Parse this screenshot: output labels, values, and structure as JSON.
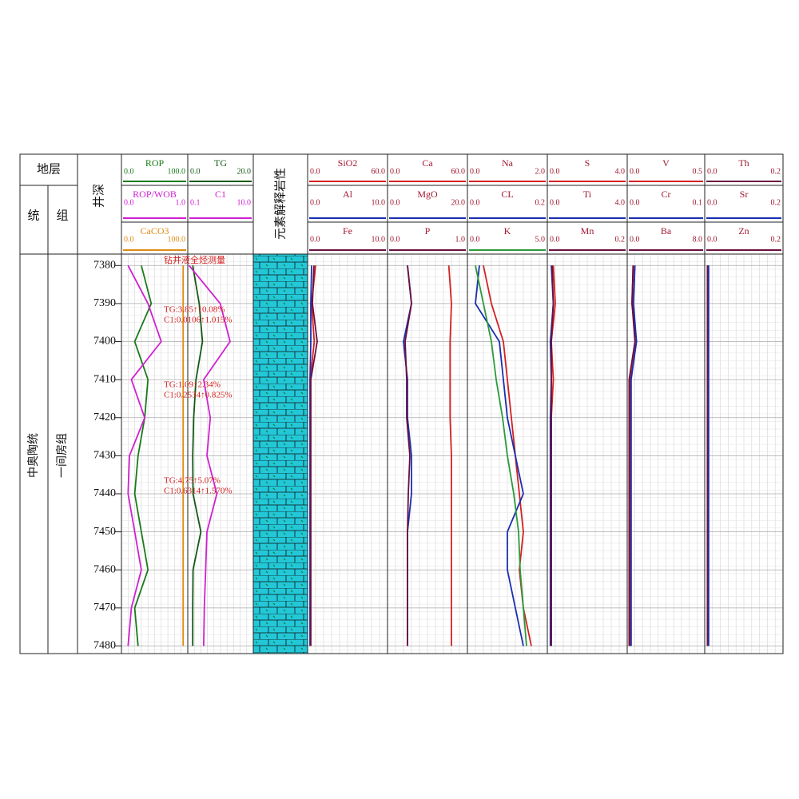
{
  "chart_data": {
    "type": "well-log",
    "headers": {
      "strata": "地层",
      "series_col": "统",
      "formation_col": "组",
      "depth": "井深",
      "lithology": "元素解释岩性"
    },
    "zones": {
      "series": "中奥陶统",
      "formation": "一间房组"
    },
    "ylim": [
      7377,
      7482
    ],
    "yticks": [
      7380,
      7390,
      7400,
      7410,
      7420,
      7430,
      7440,
      7450,
      7460,
      7470,
      7480
    ],
    "depth": [
      7380,
      7390,
      7400,
      7410,
      7420,
      7430,
      7440,
      7450,
      7460,
      7470,
      7480
    ],
    "tracks": [
      {
        "curves": [
          {
            "name": "ROP",
            "color": "#1a7a1a",
            "scale": [
              {
                "value": 0,
                "label": "0.0"
              },
              {
                "value": 100,
                "label": "100.0"
              }
            ],
            "values": [
              30,
              45,
              20,
              40,
              35,
              25,
              20,
              30,
              40,
              20,
              25
            ]
          },
          {
            "name": "ROP/WOB",
            "color": "#d020d0",
            "scale": [
              {
                "value": 0,
                "label": "0.0"
              },
              {
                "value": 1,
                "label": "1.0"
              }
            ],
            "values": [
              0.1,
              0.4,
              0.6,
              0.15,
              0.35,
              0.12,
              0.1,
              0.2,
              0.3,
              0.15,
              0.1
            ]
          },
          {
            "name": "CaCO3",
            "color": "#e08a10",
            "scale": [
              {
                "value": 0,
                "label": "0.0"
              },
              {
                "value": 100,
                "label": "100.0"
              }
            ],
            "values": [
              93,
              93,
              93,
              93,
              93,
              93,
              93,
              93,
              93,
              93,
              93
            ]
          }
        ]
      },
      {
        "curves": [
          {
            "name": "TG",
            "color": "#145a14",
            "scale": [
              {
                "value": 0,
                "label": "0.0"
              },
              {
                "value": 20,
                "label": "20.0"
              }
            ],
            "values": [
              1.5,
              3.5,
              4.5,
              2.5,
              1.8,
              1.5,
              1.6,
              4,
              1.6,
              1.5,
              1.5
            ]
          },
          {
            "name": "C1",
            "color": "#d020d0",
            "scale": [
              0.1,
              {
                "value": 10,
                "label": "10.0"
              }
            ],
            "values": [
              0.3,
              5,
              6.5,
              2.5,
              3.5,
              3,
              4.5,
              3,
              2.8,
              2.6,
              2.5
            ]
          }
        ]
      },
      {
        "curves": [
          {
            "name": "SiO2",
            "color": "#d42020",
            "scale": [
              {
                "value": 0,
                "label": "0.0"
              },
              {
                "value": 60,
                "label": "60.0"
              }
            ],
            "values": [
              6,
              3,
              5,
              2,
              2,
              2,
              2,
              2,
              2,
              2,
              2
            ]
          },
          {
            "name": "Al",
            "color": "#1a2fb0",
            "scale": [
              {
                "value": 0,
                "label": "0.0"
              },
              {
                "value": 10,
                "label": "10.0"
              }
            ],
            "values": [
              0.5,
              0.4,
              0.4,
              0.3,
              0.3,
              0.3,
              0.3,
              0.3,
              0.3,
              0.3,
              0.3
            ]
          },
          {
            "name": "Fe",
            "color": "#6a1040",
            "scale": [
              {
                "value": 0,
                "label": "0.0"
              },
              {
                "value": 10,
                "label": "10.0"
              }
            ],
            "values": [
              0.8,
              0.6,
              1.2,
              0.4,
              0.4,
              0.4,
              0.4,
              0.4,
              0.4,
              0.4,
              0.4
            ]
          }
        ]
      },
      {
        "curves": [
          {
            "name": "Ca",
            "color": "#d42020",
            "scale": [
              {
                "value": 0,
                "label": "0.0"
              },
              {
                "value": 60,
                "label": "60.0"
              }
            ],
            "values": [
              46,
              48,
              47,
              47,
              47,
              48,
              48,
              48,
              48,
              48,
              48
            ]
          },
          {
            "name": "MgO",
            "color": "#1a2fb0",
            "scale": [
              {
                "value": 0,
                "label": "0.0"
              },
              {
                "value": 20,
                "label": "20.0"
              }
            ],
            "values": [
              5,
              6,
              4,
              5,
              5,
              6,
              6,
              5,
              5,
              5,
              5
            ]
          },
          {
            "name": "P",
            "color": "#6a1040",
            "scale": [
              {
                "value": 0,
                "label": "0.0"
              },
              {
                "value": 1,
                "label": "1.0"
              }
            ],
            "values": [
              0.25,
              0.3,
              0.22,
              0.24,
              0.24,
              0.28,
              0.26,
              0.25,
              0.25,
              0.25,
              0.25
            ]
          }
        ]
      },
      {
        "curves": [
          {
            "name": "Na",
            "color": "#d42020",
            "scale": [
              {
                "value": 0,
                "label": "0.0"
              },
              {
                "value": 2,
                "label": "2.0"
              }
            ],
            "values": [
              0.4,
              0.6,
              0.9,
              1.0,
              1.1,
              1.2,
              1.3,
              1.4,
              1.3,
              1.4,
              1.6
            ]
          },
          {
            "name": "CL",
            "color": "#1a2fb0",
            "scale": [
              {
                "value": 0,
                "label": "0.0"
              },
              {
                "value": 0.2,
                "label": "0.2"
              }
            ],
            "values": [
              0.03,
              0.02,
              0.08,
              0.09,
              0.1,
              0.12,
              0.14,
              0.1,
              0.1,
              0.12,
              0.14
            ]
          },
          {
            "name": "K",
            "color": "#2a9a3a",
            "scale": [
              {
                "value": 0,
                "label": "0.0"
              },
              {
                "value": 5,
                "label": "5.0"
              }
            ],
            "values": [
              0.5,
              1.0,
              1.5,
              1.8,
              2.2,
              2.5,
              2.9,
              3.2,
              3.3,
              3.5,
              3.7
            ]
          }
        ]
      },
      {
        "curves": [
          {
            "name": "S",
            "color": "#d42020",
            "scale": [
              {
                "value": 0,
                "label": "0.0"
              },
              {
                "value": 4,
                "label": "4.0"
              }
            ],
            "values": [
              0.3,
              0.4,
              0.2,
              0.3,
              0.2,
              0.2,
              0.2,
              0.2,
              0.2,
              0.2,
              0.2
            ]
          },
          {
            "name": "Ti",
            "color": "#1a2fb0",
            "scale": [
              {
                "value": 0,
                "label": "0.0"
              },
              {
                "value": 4,
                "label": "4.0"
              }
            ],
            "values": [
              0.2,
              0.3,
              0.15,
              0.2,
              0.15,
              0.15,
              0.15,
              0.15,
              0.15,
              0.15,
              0.15
            ]
          },
          {
            "name": "Mn",
            "color": "#6a1040",
            "scale": [
              {
                "value": 0,
                "label": "0.0"
              },
              {
                "value": 0.2,
                "label": "0.2"
              }
            ],
            "values": [
              0.012,
              0.015,
              0.01,
              0.01,
              0.01,
              0.01,
              0.01,
              0.01,
              0.01,
              0.01,
              0.01
            ]
          }
        ]
      },
      {
        "curves": [
          {
            "name": "V",
            "color": "#d42020",
            "scale": [
              {
                "value": 0,
                "label": "0.0"
              },
              {
                "value": 0.5,
                "label": "0.5"
              }
            ],
            "values": [
              0.04,
              0.03,
              0.06,
              0.02,
              0.02,
              0.02,
              0.02,
              0.02,
              0.02,
              0.02,
              0.02
            ]
          },
          {
            "name": "Cr",
            "color": "#1a2fb0",
            "scale": [
              {
                "value": 0,
                "label": "0.0"
              },
              {
                "value": 0.1,
                "label": "0.1"
              }
            ],
            "values": [
              0.01,
              0.008,
              0.012,
              0.005,
              0.005,
              0.005,
              0.005,
              0.005,
              0.005,
              0.005,
              0.005
            ]
          },
          {
            "name": "Ba",
            "color": "#6a1040",
            "scale": [
              {
                "value": 0,
                "label": "0.0"
              },
              {
                "value": 8,
                "label": "8.0"
              }
            ],
            "values": [
              0.6,
              0.5,
              0.8,
              0.2,
              0.2,
              0.2,
              0.2,
              0.2,
              0.2,
              0.2,
              0.2
            ]
          }
        ]
      },
      {
        "curves": [
          {
            "name": "Th",
            "color": "#6a1040",
            "scale": [
              {
                "value": 0,
                "label": "0.0"
              },
              {
                "value": 0.2,
                "label": "0.2"
              }
            ],
            "values": [
              0.008,
              0.008,
              0.008,
              0.008,
              0.008,
              0.008,
              0.008,
              0.008,
              0.008,
              0.008,
              0.008
            ]
          },
          {
            "name": "Sr",
            "color": "#1a2fb0",
            "scale": [
              {
                "value": 0,
                "label": "0.0"
              },
              {
                "value": 0.2,
                "label": "0.2"
              }
            ],
            "values": [
              0.01,
              0.01,
              0.01,
              0.01,
              0.01,
              0.01,
              0.01,
              0.01,
              0.01,
              0.01,
              0.01
            ]
          },
          {
            "name": "Zn",
            "color": "#6a1040",
            "scale": [
              {
                "value": 0,
                "label": "0.0"
              },
              {
                "value": 0.2,
                "label": "0.2"
              }
            ],
            "values": [
              0.007,
              0.007,
              0.007,
              0.007,
              0.007,
              0.007,
              0.007,
              0.007,
              0.007,
              0.007,
              0.007
            ]
          }
        ]
      }
    ],
    "annotations": [
      "钻井液全烃测量",
      "TG:3.85↑10.08%",
      "C1:0.0106↑1.015%",
      "TG:1.09↑2.34%",
      "C1:0.2534↑0.825%",
      "TG:4.75↑5.07%",
      "C1:0.6314↑1.570%"
    ]
  }
}
